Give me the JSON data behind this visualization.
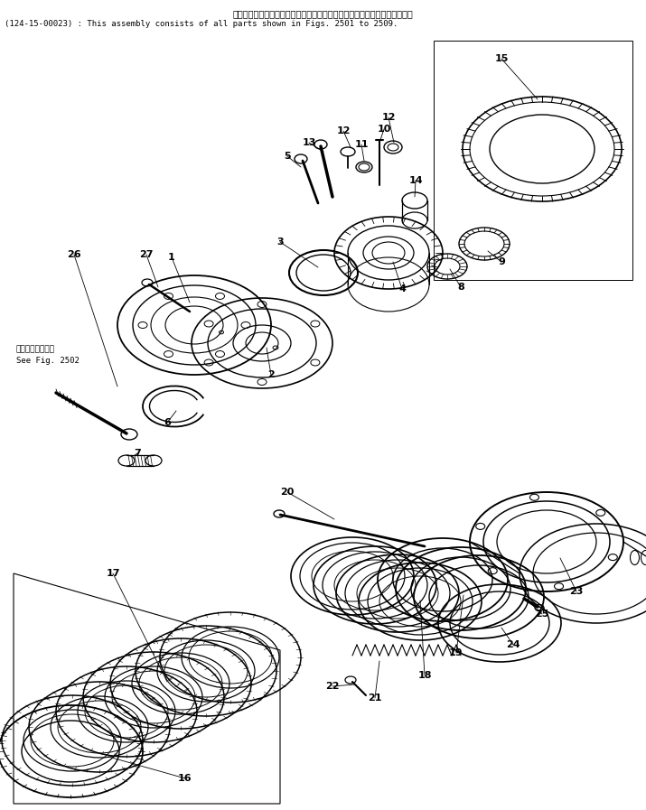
{
  "title_jp": "このアセンブリの構成部品は第２５０１図から第２５０９図まで含みます。",
  "title_en": "(124-15-00023) : This assembly consists of all parts shown in Figs. 2501 to 2509.",
  "see_fig_jp": "第２５０２図参照",
  "see_fig_en": "See Fig. 2502",
  "bg_color": "#ffffff",
  "line_color": "#000000",
  "lw": 0.9
}
